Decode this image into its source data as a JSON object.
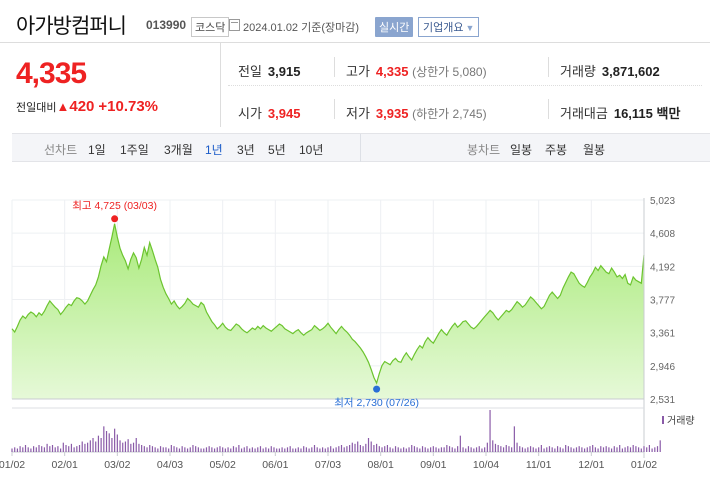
{
  "header": {
    "company_name": "아가방컴퍼니",
    "code": "013990",
    "market": "코스닥",
    "date_text": "2024.01.02  기준(장마감)",
    "realtime_label": "실시간",
    "overview_label": "기업개요"
  },
  "price": {
    "current": "4,335",
    "change_label": "전일대비",
    "change": "420",
    "change_pct": "+10.73%",
    "direction_icon": "up-triangle-icon"
  },
  "info": {
    "prev_close": {
      "label": "전일",
      "value": "3,915"
    },
    "high": {
      "label": "고가",
      "value": "4,335",
      "sub": "(상한가 5,080)"
    },
    "volume": {
      "label": "거래량",
      "value": "3,871,602"
    },
    "open": {
      "label": "시가",
      "value": "3,945"
    },
    "low": {
      "label": "저가",
      "value": "3,935",
      "sub": "(하한가 2,745)"
    },
    "amount": {
      "label": "거래대금",
      "value": "16,115",
      "unit": "백만"
    }
  },
  "period_bar": {
    "line_label": "선차트",
    "periods": [
      "1일",
      "1주일",
      "3개월",
      "1년",
      "3년",
      "5년",
      "10년"
    ],
    "selected": "1년",
    "candle_label": "봉차트",
    "candles": [
      "일봉",
      "주봉",
      "월봉"
    ]
  },
  "chart_data": {
    "type": "area",
    "y_ticks": [
      5023,
      4608,
      4192,
      3777,
      3361,
      2946,
      2531
    ],
    "ylim": [
      2531,
      5023
    ],
    "x_ticks": [
      "01/02",
      "02/01",
      "03/02",
      "04/03",
      "05/02",
      "06/01",
      "07/03",
      "08/01",
      "09/01",
      "10/04",
      "11/01",
      "12/01",
      "01/02"
    ],
    "high_annotation": "최고 4,725 (03/03)",
    "low_annotation": "최저 2,730 (07/26)",
    "volume_label": "거래량",
    "series_price": [
      3410,
      3370,
      3440,
      3520,
      3570,
      3540,
      3590,
      3620,
      3600,
      3560,
      3610,
      3580,
      3630,
      3700,
      3760,
      3720,
      3680,
      3650,
      3590,
      3630,
      3680,
      3720,
      3700,
      3760,
      3800,
      3790,
      3760,
      3720,
      3760,
      3830,
      3900,
      3960,
      4060,
      4200,
      4310,
      4250,
      4410,
      4560,
      4725,
      4560,
      4420,
      4330,
      4260,
      4160,
      4280,
      4360,
      4300,
      4170,
      4280,
      4430,
      4330,
      4490,
      4390,
      4280,
      4180,
      4030,
      3930,
      3850,
      3790,
      3720,
      3760,
      3700,
      3660,
      3690,
      3730,
      3790,
      3760,
      3720,
      3700,
      3680,
      3740,
      3710,
      3620,
      3560,
      3500,
      3460,
      3410,
      3440,
      3480,
      3430,
      3400,
      3390,
      3430,
      3470,
      3450,
      3410,
      3380,
      3360,
      3390,
      3420,
      3400,
      3440,
      3410,
      3450,
      3420,
      3400,
      3380,
      3410,
      3440,
      3470,
      3450,
      3410,
      3390,
      3370,
      3350,
      3380,
      3400,
      3360,
      3330,
      3360,
      3380,
      3400,
      3450,
      3420,
      3390,
      3410,
      3440,
      3480,
      3430,
      3390,
      3350,
      3400,
      3440,
      3400,
      3370,
      3330,
      3280,
      3250,
      3210,
      3170,
      3120,
      3060,
      2990,
      2900,
      2800,
      2730,
      2850,
      2950,
      3000,
      2980,
      2960,
      3010,
      3040,
      3000,
      2990,
      3060,
      3110,
      3060,
      3020,
      3090,
      3150,
      3200,
      3170,
      3250,
      3300,
      3260,
      3230,
      3290,
      3350,
      3400,
      3360,
      3330,
      3390,
      3440,
      3480,
      3430,
      3460,
      3500,
      3510,
      3470,
      3430,
      3410,
      3440,
      3480,
      3520,
      3560,
      3600,
      3640,
      3610,
      3560,
      3520,
      3560,
      3600,
      3640,
      3620,
      3650,
      3700,
      3750,
      3720,
      3680,
      3710,
      3760,
      3810,
      3780,
      3740,
      3700,
      3660,
      3690,
      3760,
      3830,
      3870,
      3830,
      3790,
      3830,
      3920,
      3990,
      4060,
      4120,
      4100,
      4040,
      3980,
      3950,
      3930,
      3990,
      4060,
      4110,
      4180,
      4140,
      4200,
      4160,
      4120,
      4100,
      4170,
      4120,
      4060,
      4080,
      4040,
      4090,
      3980,
      3960,
      4060,
      4020,
      4000,
      3980,
      4335
    ],
    "series_volume": [
      3,
      4,
      3,
      5,
      4,
      6,
      4,
      3,
      5,
      4,
      6,
      5,
      4,
      7,
      5,
      6,
      4,
      5,
      3,
      8,
      6,
      5,
      7,
      4,
      5,
      6,
      9,
      7,
      8,
      10,
      12,
      9,
      14,
      12,
      22,
      18,
      16,
      12,
      20,
      15,
      10,
      8,
      9,
      11,
      7,
      8,
      12,
      7,
      6,
      5,
      4,
      6,
      5,
      4,
      3,
      5,
      4,
      4,
      3,
      6,
      5,
      4,
      3,
      5,
      4,
      3,
      4,
      6,
      5,
      4,
      3,
      3,
      4,
      5,
      4,
      3,
      4,
      5,
      4,
      3,
      4,
      3,
      5,
      4,
      6,
      3,
      4,
      5,
      3,
      4,
      3,
      4,
      5,
      3,
      4,
      3,
      5,
      4,
      3,
      3,
      4,
      3,
      4,
      5,
      3,
      3,
      4,
      3,
      5,
      4,
      3,
      4,
      6,
      4,
      3,
      4,
      3,
      4,
      5,
      3,
      4,
      5,
      6,
      4,
      5,
      6,
      8,
      7,
      9,
      6,
      5,
      7,
      12,
      9,
      6,
      7,
      5,
      4,
      5,
      6,
      4,
      3,
      5,
      4,
      3,
      4,
      3,
      4,
      6,
      5,
      4,
      3,
      5,
      4,
      3,
      4,
      5,
      4,
      3,
      4,
      4,
      6,
      5,
      4,
      3,
      5,
      14,
      4,
      3,
      5,
      4,
      3,
      4,
      5,
      3,
      4,
      8,
      36,
      10,
      7,
      6,
      5,
      4,
      6,
      5,
      4,
      22,
      8,
      5,
      4,
      3,
      4,
      5,
      4,
      3,
      4,
      6,
      3,
      4,
      5,
      4,
      3,
      5,
      4,
      3,
      6,
      5,
      4,
      3,
      4,
      5,
      4,
      3,
      4,
      5,
      6,
      4,
      3,
      5,
      4,
      5,
      4,
      3,
      5,
      4,
      6,
      3,
      4,
      5,
      4,
      6,
      5,
      4,
      3,
      5,
      4,
      6,
      3,
      4,
      5,
      10
    ]
  }
}
